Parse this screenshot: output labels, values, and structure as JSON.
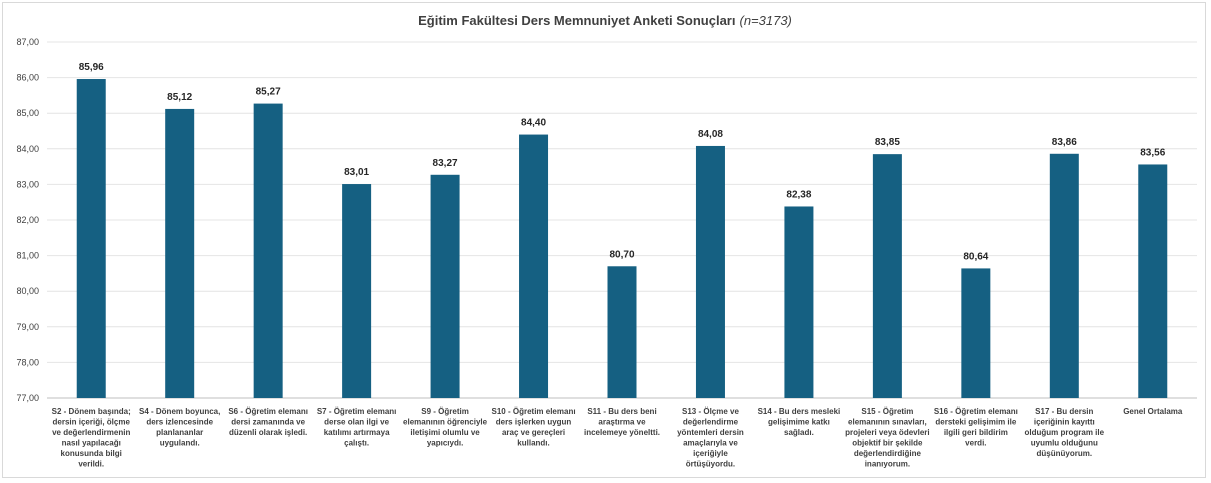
{
  "chart_data": {
    "type": "bar",
    "title": "Eğitim Fakültesi Ders Memnuniyet Anketi Sonuçları",
    "title_note": "(n=3173)",
    "xlabel": "",
    "ylabel": "",
    "ylim": [
      77,
      87
    ],
    "y_ticks": [
      "77,00",
      "78,00",
      "79,00",
      "80,00",
      "81,00",
      "82,00",
      "83,00",
      "84,00",
      "85,00",
      "86,00",
      "87,00"
    ],
    "grid": true,
    "legend": "none",
    "bar_color": "#156082",
    "categories": [
      [
        "S2 - Dönem başında;",
        "dersin içeriği, ölçme",
        "ve değerlendirmenin",
        "nasıl yapılacağı",
        "konusunda bilgi",
        "verildi."
      ],
      [
        "S4 - Dönem boyunca,",
        "ders izlencesinde",
        "planlananlar",
        "uygulandı."
      ],
      [
        "S6 - Öğretim elemanı",
        "dersi zamanında ve",
        "düzenli olarak işledi."
      ],
      [
        "S7 - Öğretim elemanı",
        "derse olan ilgi ve",
        "katılımı artırmaya",
        "çalıştı."
      ],
      [
        "S9 - Öğretim",
        "elemanının öğrenciyle",
        "iletişimi olumlu ve",
        "yapıcıydı."
      ],
      [
        "S10 - Öğretim elemanı",
        "ders işlerken uygun",
        "araç ve gereçleri",
        "kullandı."
      ],
      [
        "S11 - Bu ders beni",
        "araştırma ve",
        "incelemeye yöneltti."
      ],
      [
        "S13 - Ölçme ve",
        "değerlendirme",
        "yöntemleri dersin",
        "amaçlarıyla ve",
        "içeriğiyle",
        "örtüşüyordu."
      ],
      [
        "S14 - Bu ders mesleki",
        "gelişimime katkı",
        "sağladı."
      ],
      [
        "S15 - Öğretim",
        "elemanının sınavları,",
        "projeleri veya ödevleri",
        "objektif bir şekilde",
        "değerlendirdiğine",
        "inanıyorum."
      ],
      [
        "S16 - Öğretim elemanı",
        "dersteki gelişimim ile",
        "ilgili geri bildirim",
        "verdi."
      ],
      [
        "S17 - Bu dersin",
        "içeriğinin kayıttı",
        "olduğum program ile",
        "uyumlu olduğunu",
        "düşünüyorum."
      ],
      [
        "Genel Ortalama"
      ]
    ],
    "values": [
      85.96,
      85.12,
      85.27,
      83.01,
      83.27,
      84.4,
      80.7,
      84.08,
      82.38,
      83.85,
      80.64,
      83.86,
      83.56
    ],
    "value_labels": [
      "85,96",
      "85,12",
      "85,27",
      "83,01",
      "83,27",
      "84,40",
      "80,70",
      "84,08",
      "82,38",
      "83,85",
      "80,64",
      "83,86",
      "83,56"
    ]
  }
}
